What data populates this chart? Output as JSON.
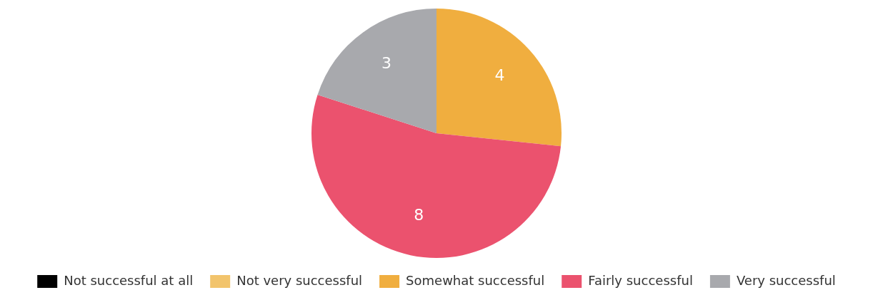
{
  "chart_data": {
    "type": "pie",
    "categories": [
      "Not successful at all",
      "Not very successful",
      "Somewhat successful",
      "Fairly successful",
      "Very successful"
    ],
    "values": [
      0,
      0,
      4,
      8,
      3
    ],
    "colors": [
      "#000000",
      "#f2c46c",
      "#f0ae3f",
      "#eb526e",
      "#a8a9ad"
    ],
    "value_labels": [
      null,
      null,
      "4",
      "8",
      "3"
    ],
    "legend": "bottom"
  }
}
